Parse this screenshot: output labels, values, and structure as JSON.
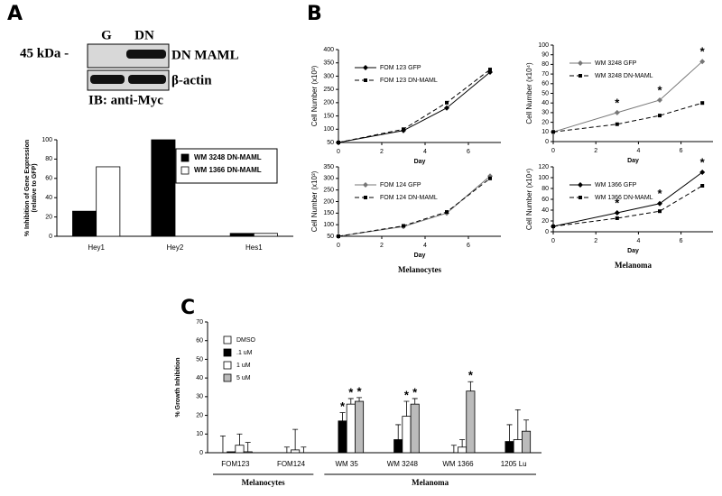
{
  "panel_labels": [
    "A",
    "B",
    "C"
  ],
  "blot": {
    "lanes": [
      "G",
      "DN"
    ],
    "marker": "45 kDa -",
    "bands": [
      "DN MAML",
      "β-actin"
    ],
    "caption": "IB: anti-Myc"
  },
  "chart_data": [
    {
      "type": "bar",
      "categories": [
        "Hey1",
        "Hey2",
        "Hes1"
      ],
      "ylabel": [
        "% Inhibition of Gene Expression",
        "(relative to GFP)"
      ],
      "series": [
        {
          "name": "WM 3248 DN-MAML",
          "color": "#000000",
          "values": [
            26,
            100,
            3
          ]
        },
        {
          "name": "WM 1366 DN-MAML",
          "color": "#ffffff",
          "values": [
            72,
            null,
            3
          ]
        }
      ],
      "ylim": [
        0,
        100
      ],
      "yticks": [
        0,
        20,
        40,
        60,
        80,
        100
      ],
      "legend": "upper right",
      "legend_frame": true
    },
    {
      "type": "line",
      "x": [
        0,
        3,
        5,
        7
      ],
      "xlabel": "Day",
      "ylabel": "Cell Number (x10³)",
      "series": [
        {
          "name": "FOM 123 GFP",
          "color": "#000000",
          "line_style": "solid",
          "marker": "diamond",
          "values": [
            50,
            95,
            180,
            315
          ]
        },
        {
          "name": "FOM 123 DN-MAML",
          "color": "#000000",
          "line_style": "dashed",
          "marker": "square",
          "values": [
            50,
            100,
            200,
            325
          ]
        }
      ],
      "xlim": [
        0,
        7.5
      ],
      "xticks": [
        0,
        2,
        4,
        6
      ],
      "ylim": [
        50,
        400
      ],
      "yticks": [
        50,
        100,
        150,
        200,
        250,
        300,
        350,
        400
      ],
      "legend": "upper left"
    },
    {
      "type": "line",
      "x": [
        0,
        3,
        5,
        7
      ],
      "xlabel": "Day",
      "ylabel": "Cell Number (x10⁴)",
      "series": [
        {
          "name": "WM 3248 GFP",
          "color": "#777777",
          "line_style": "solid",
          "marker": "diamond",
          "values": [
            10,
            30,
            43,
            83
          ]
        },
        {
          "name": "WM 3248 DN-MAML",
          "color": "#000000",
          "line_style": "dashed",
          "marker": "square",
          "values": [
            10,
            18,
            27,
            40
          ]
        }
      ],
      "xlim": [
        0,
        7.5
      ],
      "xticks": [
        0,
        2,
        4,
        6
      ],
      "ylim": [
        0,
        100
      ],
      "yticks": [
        0,
        10,
        20,
        30,
        40,
        50,
        60,
        70,
        80,
        90,
        100
      ],
      "legend": "upper left",
      "annotations": [
        {
          "text": "*",
          "x": 3
        },
        {
          "text": "*",
          "x": 5
        },
        {
          "text": "*",
          "x": 7
        }
      ]
    },
    {
      "type": "line",
      "x": [
        0,
        3,
        5,
        7
      ],
      "xlabel": "Day",
      "ylabel": "Cell Number (x10³)",
      "caption": "Melanocytes",
      "series": [
        {
          "name": "FOM 124 GFP",
          "color": "#777777",
          "line_style": "solid",
          "marker": "diamond",
          "values": [
            50,
            92,
            150,
            310
          ]
        },
        {
          "name": "FOM 124 DN-MAML",
          "color": "#000000",
          "line_style": "dashed",
          "marker": "square",
          "values": [
            50,
            95,
            155,
            300
          ]
        }
      ],
      "xlim": [
        0,
        7.5
      ],
      "xticks": [
        0,
        2,
        4,
        6
      ],
      "ylim": [
        50,
        350
      ],
      "yticks": [
        50,
        100,
        150,
        200,
        250,
        300,
        350
      ],
      "legend": "upper left"
    },
    {
      "type": "line",
      "x": [
        0,
        3,
        5,
        7
      ],
      "xlabel": "Day",
      "ylabel": "Cell Number (x10⁴)",
      "caption": "Melanoma",
      "series": [
        {
          "name": "WM 1366 GFP",
          "color": "#000000",
          "line_style": "solid",
          "marker": "diamond",
          "values": [
            10,
            35,
            52,
            110
          ]
        },
        {
          "name": "WM 1366 DN-MAML",
          "color": "#000000",
          "line_style": "dashed",
          "marker": "square",
          "values": [
            10,
            25,
            38,
            85
          ]
        }
      ],
      "xlim": [
        0,
        7.5
      ],
      "xticks": [
        0,
        2,
        4,
        6
      ],
      "ylim": [
        0,
        120
      ],
      "yticks": [
        0,
        20,
        40,
        60,
        80,
        100,
        120
      ],
      "legend": "upper left",
      "annotations": [
        {
          "text": "*",
          "x": 3
        },
        {
          "text": "*",
          "x": 5
        },
        {
          "text": "*",
          "x": 7
        }
      ]
    },
    {
      "type": "bar",
      "categories": [
        "FOM123",
        "FOM124",
        "WM 35",
        "WM 3248",
        "WM 1366",
        "1205 Lu"
      ],
      "ylabel": [
        "% Growth Inhibition"
      ],
      "series": [
        {
          "name": "DMSO",
          "color": "#ffffff",
          "values": [
            0,
            0,
            0,
            0,
            0,
            0
          ],
          "errors": [
            9,
            null,
            null,
            null,
            null,
            null
          ]
        },
        {
          "name": ".1 uM",
          "color": "#000000",
          "values": [
            0.5,
            0,
            17,
            7,
            0,
            6
          ],
          "errors": [
            null,
            3,
            4.5,
            8,
            4,
            9
          ]
        },
        {
          "name": "1 uM",
          "color": "#ffffff",
          "values": [
            4,
            1.5,
            26,
            19.5,
            3,
            7
          ],
          "errors": [
            6,
            11,
            3,
            8,
            4,
            16
          ]
        },
        {
          "name": "5 uM",
          "color": "#bbbbbb",
          "values": [
            0.5,
            0,
            27.5,
            26,
            33,
            11.5
          ],
          "errors": [
            5,
            3,
            2,
            3,
            5,
            6
          ]
        }
      ],
      "ylim": [
        0,
        70
      ],
      "yticks": [
        0,
        10,
        20,
        30,
        40,
        50,
        60,
        70
      ],
      "legend": "upper left",
      "legend_frame": false,
      "groups": [
        {
          "label": "Melanocytes",
          "members": [
            "FOM123",
            "FOM124"
          ]
        },
        {
          "label": "Melanoma",
          "members": [
            "WM 35",
            "WM 3248",
            "WM 1366",
            "1205 Lu"
          ]
        }
      ],
      "annotations": [
        {
          "text": "*",
          "series": ".1 uM",
          "category": "WM 35"
        },
        {
          "text": "*",
          "series": "1 uM",
          "category": "WM 35"
        },
        {
          "text": "*",
          "series": "5 uM",
          "category": "WM 35"
        },
        {
          "text": "*",
          "series": "1 uM",
          "category": "WM 3248"
        },
        {
          "text": "*",
          "series": "5 uM",
          "category": "WM 3248"
        },
        {
          "text": "*",
          "series": "5 uM",
          "category": "WM 1366"
        }
      ]
    }
  ]
}
